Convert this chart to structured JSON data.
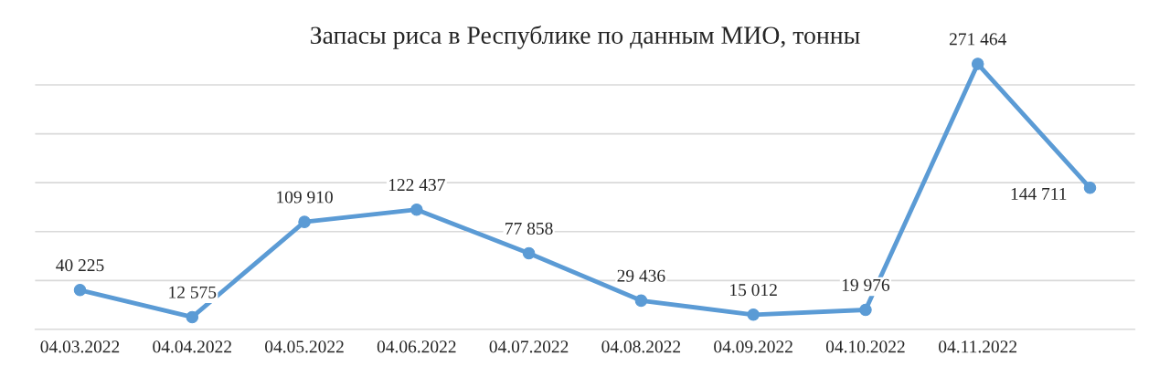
{
  "chart_data": {
    "type": "line",
    "title": "Запасы риса в Республике по данным МИО, тонны",
    "categories": [
      "04.03.2022",
      "04.04.2022",
      "04.05.2022",
      "04.06.2022",
      "04.07.2022",
      "04.08.2022",
      "04.09.2022",
      "04.10.2022",
      "04.11.2022",
      null
    ],
    "series": [
      {
        "color": "#5b9bd5",
        "values": [
          40225,
          12575,
          109910,
          122437,
          77858,
          29436,
          15012,
          19976,
          271464,
          144711
        ]
      }
    ],
    "yticks": [
      {
        "value": 0,
        "label": null
      },
      {
        "value": 50000,
        "label": null
      },
      {
        "value": 100000,
        "label": null
      },
      {
        "value": 150000,
        "label": null
      },
      {
        "value": 200000,
        "label": null
      },
      {
        "value": 250000,
        "label": null
      }
    ],
    "grid": "y",
    "tick_labels": "x",
    "marker": "circle",
    "line_style": "solid",
    "data_labels": true
  }
}
